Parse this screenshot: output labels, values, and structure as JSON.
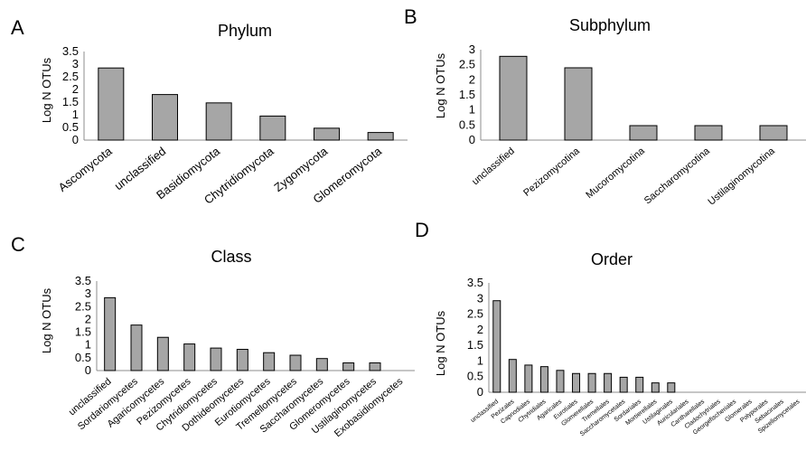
{
  "chart_data": [
    {
      "type": "bar",
      "panel_letter": "A",
      "title": "Phylum",
      "ylabel": "Log N OTUs",
      "ylim": [
        0,
        3.5
      ],
      "yticks": [
        "0",
        "0.5",
        "1",
        "1.5",
        "2",
        "2.5",
        "3",
        "3.5"
      ],
      "categories": [
        "Ascomycota",
        "unclassified",
        "Basidiomycota",
        "Chytridiomycota",
        "Zygomycota",
        "Glomeromycota"
      ],
      "values": [
        2.85,
        1.8,
        1.47,
        0.95,
        0.47,
        0.3
      ],
      "bar_color": "#a6a6a6"
    },
    {
      "type": "bar",
      "panel_letter": "B",
      "title": "Subphylum",
      "ylabel": "Log N OTUs",
      "ylim": [
        0,
        3
      ],
      "yticks": [
        "0",
        "0.5",
        "1",
        "1.5",
        "2",
        "2.5",
        "3"
      ],
      "categories": [
        "unclassified",
        "Pezizomycotina",
        "Mucoromycotina",
        "Saccharomycotina",
        "Ustilaginomycotina"
      ],
      "values": [
        2.78,
        2.4,
        0.48,
        0.48,
        0.48
      ],
      "bar_color": "#a6a6a6"
    },
    {
      "type": "bar",
      "panel_letter": "C",
      "title": "Class",
      "ylabel": "Log N OTUs",
      "ylim": [
        0,
        3.5
      ],
      "yticks": [
        "0",
        "0.5",
        "1",
        "1.5",
        "2",
        "2.5",
        "3",
        "3.5"
      ],
      "categories": [
        "unclassified",
        "Sordariomycetes",
        "Agaricomycetes",
        "Pezizomycetes",
        "Chytridiomycetes",
        "Dothideomycetes",
        "Eurotiomycetes",
        "Tremellomycetes",
        "Saccharomycetes",
        "Glomeromycetes",
        "Ustilaginomycetes",
        "Exobasidiomycetes"
      ],
      "values": [
        2.85,
        1.78,
        1.3,
        1.04,
        0.88,
        0.83,
        0.7,
        0.6,
        0.47,
        0.3,
        0.3,
        0
      ],
      "bar_color": "#a6a6a6"
    },
    {
      "type": "bar",
      "panel_letter": "D",
      "title": "Order",
      "ylabel": "Log N OTUs",
      "ylim": [
        0,
        3.5
      ],
      "yticks": [
        "0",
        "0.5",
        "1",
        "1.5",
        "2",
        "2.5",
        "3",
        "3.5"
      ],
      "categories": [
        "unclassified",
        "Pezizales",
        "Capnodiales",
        "Chytridiales",
        "Agaricales",
        "Eurotiales",
        "Glomerellales",
        "Tremellales",
        "Saccharomycetales",
        "Sordariales",
        "Mortierellales",
        "Ustilaginales",
        "Auriculariales",
        "Cantharellales",
        "Cladochytriales",
        "Georgefischeriales",
        "Glomerales",
        "Polyporales",
        "Sebacinales",
        "Spizellomycetales"
      ],
      "values": [
        2.93,
        1.05,
        0.87,
        0.82,
        0.7,
        0.6,
        0.6,
        0.6,
        0.48,
        0.48,
        0.3,
        0.3,
        0,
        0,
        0,
        0,
        0,
        0,
        0,
        0
      ],
      "bar_color": "#a6a6a6"
    }
  ]
}
